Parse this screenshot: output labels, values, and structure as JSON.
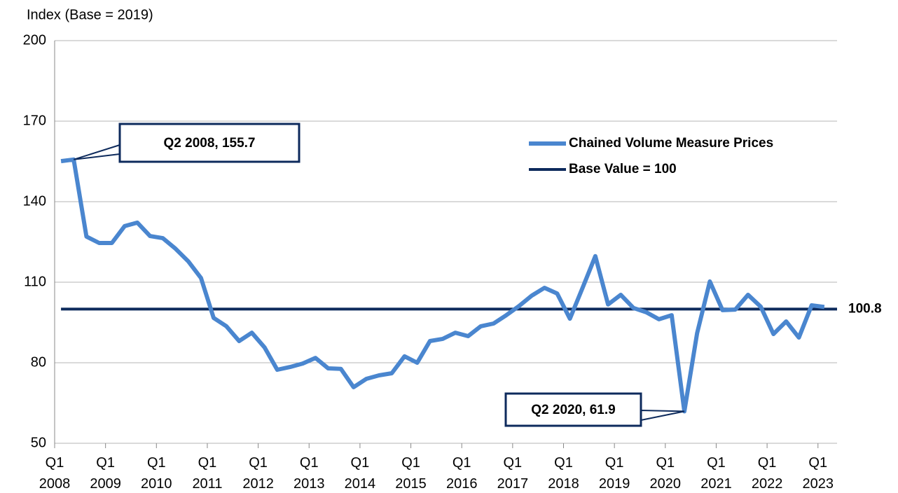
{
  "chart_data": {
    "type": "line",
    "ylabel": "Index (Base = 2019)",
    "categories": [
      "Q1 2008",
      null,
      null,
      null,
      "Q1 2009",
      null,
      null,
      null,
      "Q1 2010",
      null,
      null,
      null,
      "Q1 2011",
      null,
      null,
      null,
      "Q1 2012",
      null,
      null,
      null,
      "Q1 2013",
      null,
      null,
      null,
      "Q1 2014",
      null,
      null,
      null,
      "Q1 2015",
      null,
      null,
      null,
      "Q1 2016",
      null,
      null,
      null,
      "Q1 2017",
      null,
      null,
      null,
      "Q1 2018",
      null,
      null,
      null,
      "Q1 2019",
      null,
      null,
      null,
      "Q1 2020",
      null,
      null,
      null,
      "Q1 2021",
      null,
      null,
      null,
      "Q1 2022",
      null,
      null,
      null,
      "Q1 2023"
    ],
    "series": [
      {
        "name": "Chained Volume Measure Prices",
        "color": "#4a86cf",
        "values": [
          155.1,
          155.7,
          127,
          124.6,
          124.6,
          130.9,
          132.2,
          127.2,
          126.4,
          122.5,
          117.8,
          111.6,
          96.7,
          93.6,
          88.1,
          91.2,
          85.7,
          77.4,
          78.4,
          79.7,
          81.8,
          77.9,
          77.7,
          70.9,
          74,
          75.3,
          76.1,
          82.4,
          80,
          88.1,
          88.9,
          91.2,
          89.9,
          93.6,
          94.6,
          97.7,
          101.1,
          105,
          107.9,
          105.8,
          96.4,
          107.9,
          119.7,
          101.7,
          105.3,
          100.4,
          98.8,
          96.2,
          97.7,
          61.9,
          91,
          110.3,
          99.6,
          99.8,
          105.3,
          100.9,
          90.7,
          95.4,
          89.4,
          101.4,
          100.8
        ]
      }
    ],
    "reference_line": {
      "name": "Base Value = 100",
      "value": 100,
      "color": "#0d2a5c"
    },
    "annotations": [
      "Q2 2008, 155.7",
      "Q2 2020, 61.9"
    ],
    "ylim": [
      50,
      200
    ],
    "yticks": [
      50,
      80,
      110,
      140,
      170,
      200
    ],
    "grid": true,
    "legend": "upper right"
  }
}
